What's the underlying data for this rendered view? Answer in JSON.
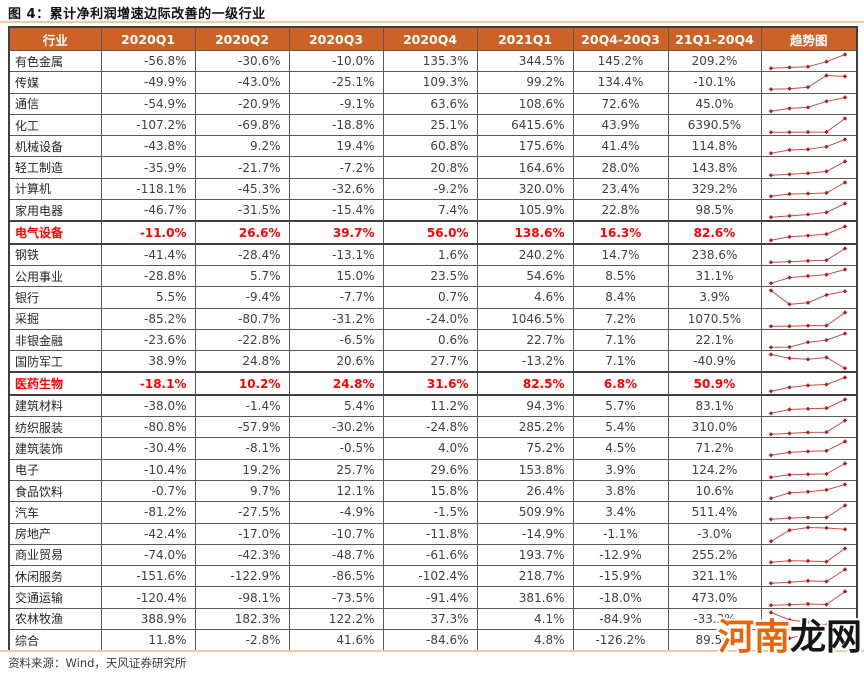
{
  "chart_data": {
    "type": "table",
    "title": "图 4：累计净利润增速边际改善的一级行业",
    "columns": [
      "行业",
      "2020Q1",
      "2020Q2",
      "2020Q3",
      "2020Q4",
      "2021Q1",
      "20Q4-20Q3",
      "21Q1-20Q4",
      "趋势图"
    ],
    "trend_note": "趋势图 column: red sparkline of the five quarterly values per row",
    "rows": [
      {
        "industry": "有色金属",
        "values": [
          "-56.8%",
          "-30.6%",
          "-10.0%",
          "135.3%",
          "344.5%",
          "145.2%",
          "209.2%"
        ],
        "highlight": false
      },
      {
        "industry": "传媒",
        "values": [
          "-49.9%",
          "-43.0%",
          "-25.1%",
          "109.3%",
          "99.2%",
          "134.4%",
          "-10.1%"
        ],
        "highlight": false
      },
      {
        "industry": "通信",
        "values": [
          "-54.9%",
          "-20.9%",
          "-9.1%",
          "63.6%",
          "108.6%",
          "72.6%",
          "45.0%"
        ],
        "highlight": false
      },
      {
        "industry": "化工",
        "values": [
          "-107.2%",
          "-69.8%",
          "-18.8%",
          "25.1%",
          "6415.6%",
          "43.9%",
          "6390.5%"
        ],
        "highlight": false
      },
      {
        "industry": "机械设备",
        "values": [
          "-43.8%",
          "9.2%",
          "19.4%",
          "60.8%",
          "175.6%",
          "41.4%",
          "114.8%"
        ],
        "highlight": false
      },
      {
        "industry": "轻工制造",
        "values": [
          "-35.9%",
          "-21.7%",
          "-7.2%",
          "20.8%",
          "164.6%",
          "28.0%",
          "143.8%"
        ],
        "highlight": false
      },
      {
        "industry": "计算机",
        "values": [
          "-118.1%",
          "-45.3%",
          "-32.6%",
          "-9.2%",
          "320.0%",
          "23.4%",
          "329.2%"
        ],
        "highlight": false
      },
      {
        "industry": "家用电器",
        "values": [
          "-46.7%",
          "-31.5%",
          "-15.4%",
          "7.4%",
          "105.9%",
          "22.8%",
          "98.5%"
        ],
        "highlight": false
      },
      {
        "industry": "电气设备",
        "values": [
          "-11.0%",
          "26.6%",
          "39.7%",
          "56.0%",
          "138.6%",
          "16.3%",
          "82.6%"
        ],
        "highlight": true
      },
      {
        "industry": "钢铁",
        "values": [
          "-41.4%",
          "-28.4%",
          "-13.1%",
          "1.6%",
          "240.2%",
          "14.7%",
          "238.6%"
        ],
        "highlight": false
      },
      {
        "industry": "公用事业",
        "values": [
          "-28.8%",
          "5.7%",
          "15.0%",
          "23.5%",
          "54.6%",
          "8.5%",
          "31.1%"
        ],
        "highlight": false
      },
      {
        "industry": "银行",
        "values": [
          "5.5%",
          "-9.4%",
          "-7.7%",
          "0.7%",
          "4.6%",
          "8.4%",
          "3.9%"
        ],
        "highlight": false
      },
      {
        "industry": "采掘",
        "values": [
          "-85.2%",
          "-80.7%",
          "-31.2%",
          "-24.0%",
          "1046.5%",
          "7.2%",
          "1070.5%"
        ],
        "highlight": false
      },
      {
        "industry": "非银金融",
        "values": [
          "-23.6%",
          "-22.8%",
          "-6.5%",
          "0.6%",
          "22.7%",
          "7.1%",
          "22.1%"
        ],
        "highlight": false
      },
      {
        "industry": "国防军工",
        "values": [
          "38.9%",
          "24.8%",
          "20.6%",
          "27.7%",
          "-13.2%",
          "7.1%",
          "-40.9%"
        ],
        "highlight": false
      },
      {
        "industry": "医药生物",
        "values": [
          "-18.1%",
          "10.2%",
          "24.8%",
          "31.6%",
          "82.5%",
          "6.8%",
          "50.9%"
        ],
        "highlight": true
      },
      {
        "industry": "建筑材料",
        "values": [
          "-38.0%",
          "-1.4%",
          "5.4%",
          "11.2%",
          "94.3%",
          "5.7%",
          "83.1%"
        ],
        "highlight": false
      },
      {
        "industry": "纺织服装",
        "values": [
          "-80.8%",
          "-57.9%",
          "-30.2%",
          "-24.8%",
          "285.2%",
          "5.4%",
          "310.0%"
        ],
        "highlight": false
      },
      {
        "industry": "建筑装饰",
        "values": [
          "-30.4%",
          "-8.1%",
          "-0.5%",
          "4.0%",
          "75.2%",
          "4.5%",
          "71.2%"
        ],
        "highlight": false
      },
      {
        "industry": "电子",
        "values": [
          "-10.4%",
          "19.2%",
          "25.7%",
          "29.6%",
          "153.8%",
          "3.9%",
          "124.2%"
        ],
        "highlight": false
      },
      {
        "industry": "食品饮料",
        "values": [
          "-0.7%",
          "9.7%",
          "12.1%",
          "15.8%",
          "26.4%",
          "3.8%",
          "10.6%"
        ],
        "highlight": false
      },
      {
        "industry": "汽车",
        "values": [
          "-81.2%",
          "-27.5%",
          "-4.9%",
          "-1.5%",
          "509.9%",
          "3.4%",
          "511.4%"
        ],
        "highlight": false
      },
      {
        "industry": "房地产",
        "values": [
          "-42.4%",
          "-17.0%",
          "-10.7%",
          "-11.8%",
          "-14.9%",
          "-1.1%",
          "-3.0%"
        ],
        "highlight": false
      },
      {
        "industry": "商业贸易",
        "values": [
          "-74.0%",
          "-42.3%",
          "-48.7%",
          "-61.6%",
          "193.7%",
          "-12.9%",
          "255.2%"
        ],
        "highlight": false
      },
      {
        "industry": "休闲服务",
        "values": [
          "-151.6%",
          "-122.9%",
          "-86.5%",
          "-102.4%",
          "218.7%",
          "-15.9%",
          "321.1%"
        ],
        "highlight": false
      },
      {
        "industry": "交通运输",
        "values": [
          "-120.4%",
          "-98.1%",
          "-73.5%",
          "-91.4%",
          "381.6%",
          "-18.0%",
          "473.0%"
        ],
        "highlight": false
      },
      {
        "industry": "农林牧渔",
        "values": [
          "388.9%",
          "182.3%",
          "122.2%",
          "37.3%",
          "4.1%",
          "-84.9%",
          "-33.3%"
        ],
        "highlight": false
      },
      {
        "industry": "综合",
        "values": [
          "11.8%",
          "-2.8%",
          "41.6%",
          "-84.6%",
          "4.8%",
          "-126.2%",
          "89.5%"
        ],
        "highlight": false
      }
    ]
  },
  "footer": {
    "source": "资料来源：Wind，天风证券研究所"
  },
  "watermark": {
    "part1": "河南",
    "part2": "龙网"
  },
  "colors": {
    "header_bg": "#cd6227",
    "header_text": "#ffffff",
    "highlight_text": "#ff0000",
    "body_text": "#3f3f3f",
    "spark_line": "#c0504d",
    "spark_marker": "#b02020",
    "rule_line": "#f4c9a2",
    "watermark_orange": "#e8650a",
    "watermark_dark": "#161616"
  }
}
